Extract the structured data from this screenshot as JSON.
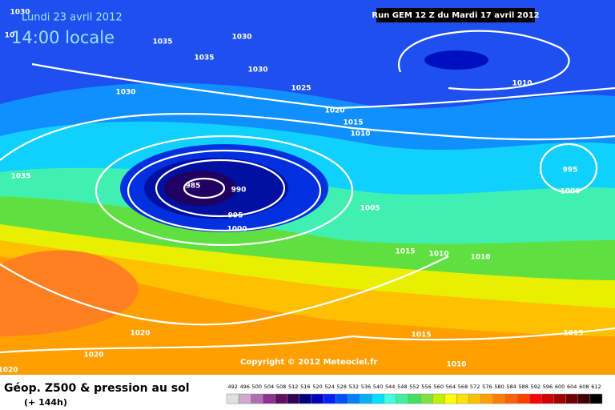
{
  "header": {
    "date": "Lundi 23 avril 2012",
    "time": "14:00 locale",
    "run": "Run GEM 12 Z du Mardi 17 avril 2012"
  },
  "map": {
    "isobar_labels": [
      1030,
      10,
      1035,
      1030,
      1035,
      1030,
      1030,
      1025,
      1010,
      1020,
      1015,
      1010,
      1035,
      985,
      990,
      995,
      1000,
      1005,
      995,
      1000,
      1015,
      1010,
      1010,
      1020,
      1020,
      1015,
      1010,
      1015,
      1020
    ],
    "copyright": "Copyright © 2012 Meteociel.fr"
  },
  "footer": {
    "title": "Géop. Z500 & pression au sol",
    "lead": "(+ 144h)",
    "scale": [
      {
        "value": 492,
        "color": "#e0e0e0"
      },
      {
        "value": 496,
        "color": "#d0a8d0"
      },
      {
        "value": 500,
        "color": "#b070b0"
      },
      {
        "value": 504,
        "color": "#903090"
      },
      {
        "value": 508,
        "color": "#601060"
      },
      {
        "value": 512,
        "color": "#300050"
      },
      {
        "value": 516,
        "color": "#000080"
      },
      {
        "value": 520,
        "color": "#0000c0"
      },
      {
        "value": 524,
        "color": "#0020ff"
      },
      {
        "value": 528,
        "color": "#0050ff"
      },
      {
        "value": 532,
        "color": "#0080ff"
      },
      {
        "value": 536,
        "color": "#00b0ff"
      },
      {
        "value": 540,
        "color": "#00e0ff"
      },
      {
        "value": 544,
        "color": "#40ffe0"
      },
      {
        "value": 548,
        "color": "#40f0a0"
      },
      {
        "value": 552,
        "color": "#40e060"
      },
      {
        "value": 556,
        "color": "#80e040"
      },
      {
        "value": 560,
        "color": "#c0f000"
      },
      {
        "value": 564,
        "color": "#ffff00"
      },
      {
        "value": 568,
        "color": "#ffe000"
      },
      {
        "value": 572,
        "color": "#ffc000"
      },
      {
        "value": 576,
        "color": "#ffa000"
      },
      {
        "value": 580,
        "color": "#ff8000"
      },
      {
        "value": 584,
        "color": "#ff6000"
      },
      {
        "value": 588,
        "color": "#ff4000"
      },
      {
        "value": 592,
        "color": "#ff0000"
      },
      {
        "value": 596,
        "color": "#d00000"
      },
      {
        "value": 600,
        "color": "#a00000"
      },
      {
        "value": 604,
        "color": "#700000"
      },
      {
        "value": 608,
        "color": "#400000"
      },
      {
        "value": 612,
        "color": "#000000"
      }
    ]
  }
}
